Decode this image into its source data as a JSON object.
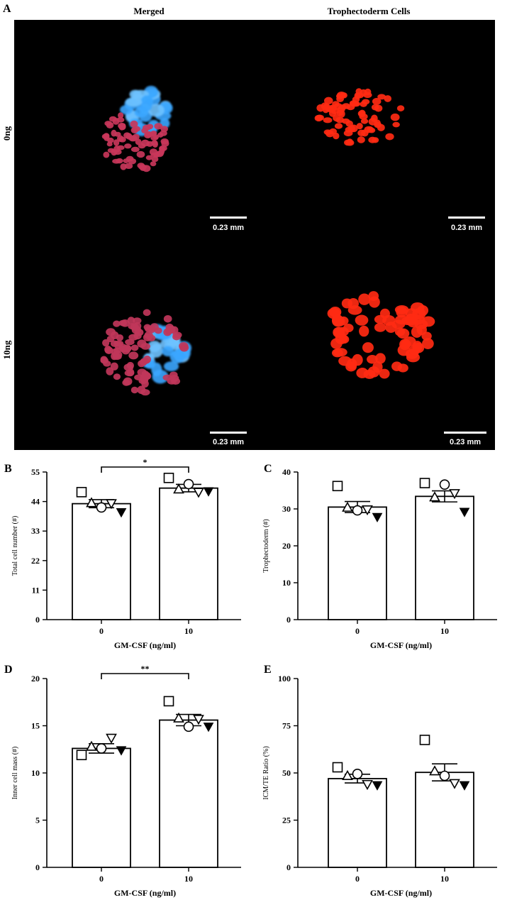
{
  "panels": {
    "A": {
      "letter": "A",
      "col_titles": [
        "Merged",
        "Trophectoderm Cells"
      ],
      "row_labels": [
        "0ng",
        "10ng"
      ],
      "scale_bar_label": "0.23 mm",
      "colors": {
        "nuclei": "#3aa0ff",
        "trophectoderm": "#ff2a1a",
        "merged_red": "#c8365a",
        "background": "#000000"
      }
    }
  },
  "chart_data": [
    {
      "panel": "B",
      "type": "bar",
      "categories": [
        "0",
        "10"
      ],
      "values": [
        43.2,
        49.0
      ],
      "sem": [
        1.5,
        1.4
      ],
      "points": [
        [
          47.5,
          43.5,
          41.8,
          43.3,
          40.0
        ],
        [
          52.8,
          48.6,
          50.5,
          47.5,
          47.8
        ]
      ],
      "xlabel": "GM-CSF (ng/ml)",
      "ylabel": "Total cell number (#)",
      "ylim": [
        0,
        55
      ],
      "yticks": [
        0,
        11,
        22,
        33,
        44,
        55
      ],
      "significance": "*"
    },
    {
      "panel": "C",
      "type": "bar",
      "categories": [
        "0",
        "10"
      ],
      "values": [
        30.5,
        33.4
      ],
      "sem": [
        1.5,
        1.5
      ],
      "points": [
        [
          36.2,
          30.4,
          29.6,
          29.8,
          27.8
        ],
        [
          37.0,
          33.2,
          36.6,
          34.2,
          29.2
        ]
      ],
      "xlabel": "GM-CSF (ng/ml)",
      "ylabel": "Trophectoderm (#)",
      "ylim": [
        0,
        40
      ],
      "yticks": [
        0,
        10,
        20,
        30,
        40
      ],
      "significance": ""
    },
    {
      "panel": "D",
      "type": "bar",
      "categories": [
        "0",
        "10"
      ],
      "values": [
        12.6,
        15.6
      ],
      "sem": [
        0.5,
        0.6
      ],
      "points": [
        [
          11.9,
          12.8,
          12.6,
          13.7,
          12.4
        ],
        [
          17.6,
          15.8,
          14.9,
          15.7,
          14.9
        ]
      ],
      "xlabel": "GM-CSF (ng/ml)",
      "ylabel": "Inner cell mass (#)",
      "ylim": [
        0,
        20
      ],
      "yticks": [
        0,
        5,
        10,
        15,
        20
      ],
      "significance": "**"
    },
    {
      "panel": "E",
      "type": "bar",
      "categories": [
        "0",
        "10"
      ],
      "values": [
        47.0,
        50.3
      ],
      "sem": [
        2.3,
        4.5
      ],
      "points": [
        [
          53.0,
          48.5,
          49.5,
          44.0,
          43.5
        ],
        [
          67.5,
          51.0,
          48.5,
          44.5,
          43.5
        ]
      ],
      "xlabel": "GM-CSF (ng/ml)",
      "ylabel": "ICM/TE Ratio (%)",
      "ylim": [
        0,
        100
      ],
      "yticks": [
        0,
        25,
        50,
        75,
        100
      ],
      "significance": ""
    }
  ]
}
